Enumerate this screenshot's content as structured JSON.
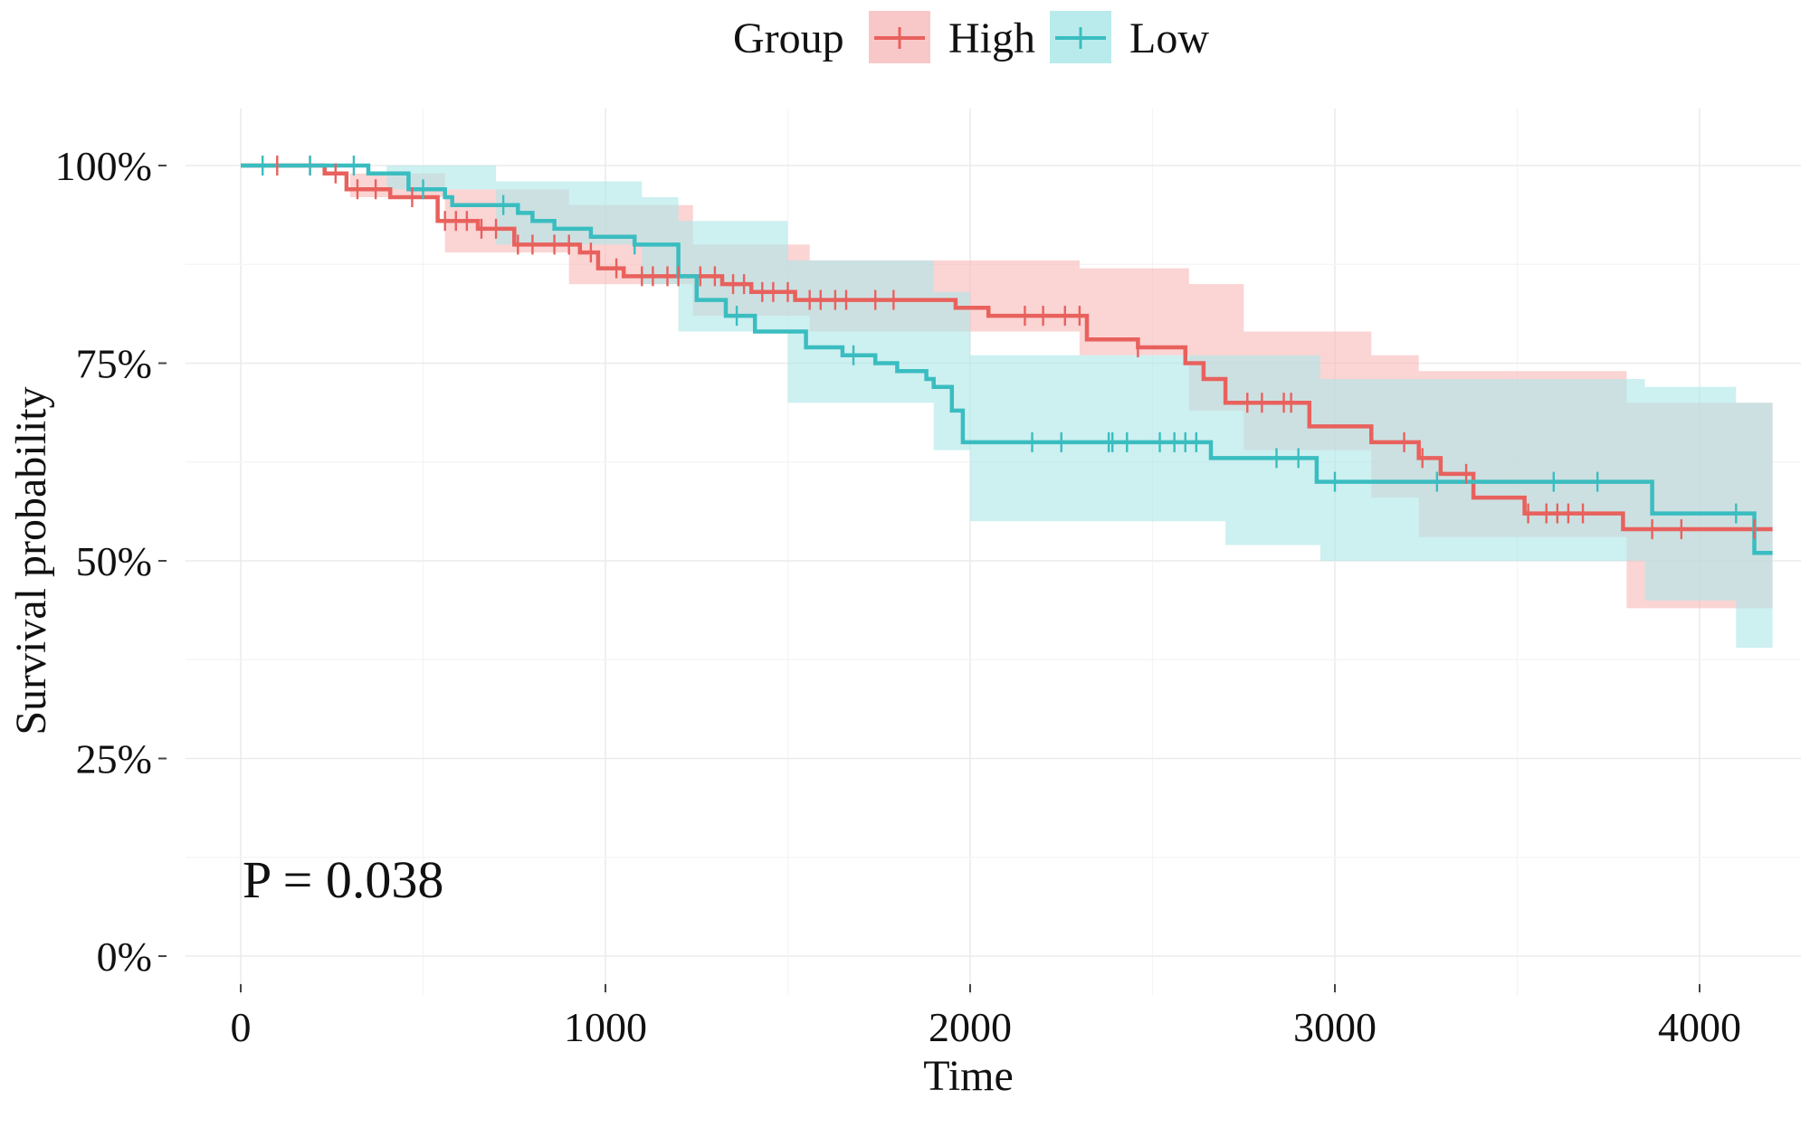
{
  "chart_data": {
    "type": "line",
    "subtype": "kaplan-meier-survival",
    "xlabel": "Time",
    "ylabel": "Survival probability",
    "xlim": [
      0,
      4200
    ],
    "ylim": [
      0,
      1
    ],
    "x_ticks": [
      0,
      1000,
      2000,
      3000,
      4000
    ],
    "x_tick_labels": [
      "0",
      "1000",
      "2000",
      "3000",
      "4000"
    ],
    "y_ticks": [
      0,
      0.25,
      0.5,
      0.75,
      1.0
    ],
    "y_tick_labels": [
      "0%",
      "25%",
      "50%",
      "75%",
      "100%"
    ],
    "grid": true,
    "legend": {
      "title": "Group",
      "placement": "top",
      "entries": [
        "High",
        "Low"
      ]
    },
    "annotation": "P = 0.038",
    "series": [
      {
        "name": "High",
        "color": "#e8615d",
        "ci_color": "#f8b9b9",
        "steps": [
          [
            0,
            1.0
          ],
          [
            230,
            0.99
          ],
          [
            290,
            0.97
          ],
          [
            410,
            0.96
          ],
          [
            540,
            0.93
          ],
          [
            650,
            0.92
          ],
          [
            750,
            0.9
          ],
          [
            930,
            0.89
          ],
          [
            980,
            0.87
          ],
          [
            1050,
            0.86
          ],
          [
            1240,
            0.86
          ],
          [
            1320,
            0.85
          ],
          [
            1400,
            0.84
          ],
          [
            1520,
            0.83
          ],
          [
            1960,
            0.82
          ],
          [
            2050,
            0.81
          ],
          [
            2320,
            0.78
          ],
          [
            2460,
            0.77
          ],
          [
            2590,
            0.75
          ],
          [
            2640,
            0.73
          ],
          [
            2700,
            0.7
          ],
          [
            2930,
            0.67
          ],
          [
            3100,
            0.65
          ],
          [
            3230,
            0.63
          ],
          [
            3290,
            0.61
          ],
          [
            3380,
            0.58
          ],
          [
            3520,
            0.56
          ],
          [
            3790,
            0.54
          ],
          [
            4200,
            0.54
          ]
        ],
        "ci_upper": [
          [
            0,
            1.0
          ],
          [
            300,
            0.99
          ],
          [
            560,
            0.97
          ],
          [
            900,
            0.95
          ],
          [
            1240,
            0.9
          ],
          [
            1560,
            0.88
          ],
          [
            2300,
            0.87
          ],
          [
            2600,
            0.85
          ],
          [
            2750,
            0.79
          ],
          [
            3100,
            0.76
          ],
          [
            3230,
            0.74
          ],
          [
            3800,
            0.7
          ],
          [
            4200,
            0.66
          ]
        ],
        "ci_lower": [
          [
            0,
            1.0
          ],
          [
            300,
            0.96
          ],
          [
            560,
            0.89
          ],
          [
            900,
            0.85
          ],
          [
            1240,
            0.81
          ],
          [
            1560,
            0.79
          ],
          [
            2300,
            0.76
          ],
          [
            2600,
            0.69
          ],
          [
            2750,
            0.64
          ],
          [
            3100,
            0.58
          ],
          [
            3230,
            0.53
          ],
          [
            3800,
            0.44
          ],
          [
            4200,
            0.44
          ]
        ],
        "censor_times": [
          100,
          190,
          260,
          320,
          370,
          470,
          560,
          590,
          620,
          660,
          700,
          760,
          800,
          860,
          900,
          960,
          1030,
          1100,
          1130,
          1170,
          1200,
          1260,
          1300,
          1350,
          1380,
          1430,
          1460,
          1500,
          1560,
          1590,
          1630,
          1660,
          1740,
          1790,
          2150,
          2200,
          2260,
          2300,
          2460,
          2760,
          2800,
          2860,
          2880,
          3190,
          3240,
          3360,
          3530,
          3580,
          3610,
          3640,
          3680,
          3870,
          3950,
          4150
        ]
      },
      {
        "name": "Low",
        "color": "#3abdc0",
        "ci_color": "#aee6e8",
        "steps": [
          [
            0,
            1.0
          ],
          [
            350,
            0.99
          ],
          [
            460,
            0.97
          ],
          [
            560,
            0.96
          ],
          [
            580,
            0.95
          ],
          [
            760,
            0.94
          ],
          [
            800,
            0.93
          ],
          [
            860,
            0.92
          ],
          [
            960,
            0.91
          ],
          [
            1080,
            0.9
          ],
          [
            1200,
            0.86
          ],
          [
            1250,
            0.83
          ],
          [
            1330,
            0.81
          ],
          [
            1410,
            0.79
          ],
          [
            1550,
            0.77
          ],
          [
            1650,
            0.76
          ],
          [
            1740,
            0.75
          ],
          [
            1800,
            0.74
          ],
          [
            1880,
            0.73
          ],
          [
            1900,
            0.72
          ],
          [
            1950,
            0.69
          ],
          [
            1980,
            0.65
          ],
          [
            2660,
            0.63
          ],
          [
            2950,
            0.6
          ],
          [
            3870,
            0.56
          ],
          [
            4150,
            0.51
          ],
          [
            4200,
            0.51
          ]
        ],
        "ci_upper": [
          [
            0,
            1.0
          ],
          [
            400,
            1.0
          ],
          [
            700,
            0.98
          ],
          [
            1100,
            0.96
          ],
          [
            1200,
            0.93
          ],
          [
            1500,
            0.88
          ],
          [
            1900,
            0.84
          ],
          [
            2000,
            0.76
          ],
          [
            2700,
            0.76
          ],
          [
            2960,
            0.73
          ],
          [
            3850,
            0.72
          ],
          [
            4100,
            0.7
          ],
          [
            4200,
            0.68
          ]
        ],
        "ci_lower": [
          [
            0,
            1.0
          ],
          [
            400,
            0.97
          ],
          [
            700,
            0.9
          ],
          [
            1100,
            0.85
          ],
          [
            1200,
            0.79
          ],
          [
            1500,
            0.7
          ],
          [
            1900,
            0.64
          ],
          [
            2000,
            0.55
          ],
          [
            2700,
            0.52
          ],
          [
            2960,
            0.5
          ],
          [
            3850,
            0.45
          ],
          [
            4100,
            0.39
          ],
          [
            4200,
            0.38
          ]
        ],
        "censor_times": [
          60,
          190,
          310,
          500,
          720,
          1080,
          1360,
          1680,
          2170,
          2250,
          2380,
          2390,
          2430,
          2520,
          2560,
          2590,
          2620,
          2840,
          2900,
          3000,
          3280,
          3600,
          3720,
          4100
        ]
      }
    ]
  }
}
